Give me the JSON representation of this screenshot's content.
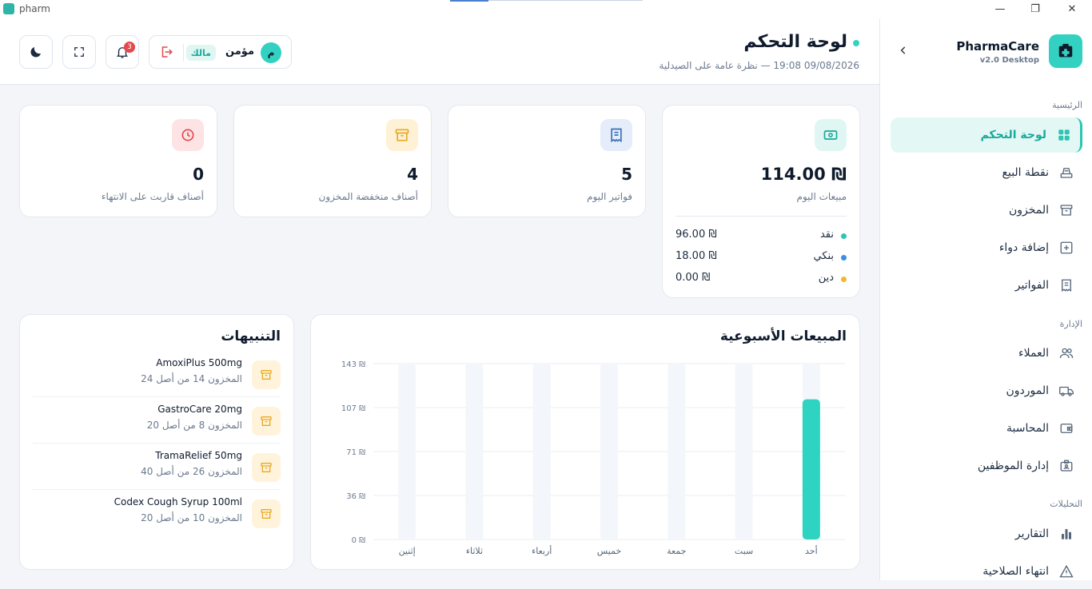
{
  "window": {
    "title": "pharm",
    "controls": [
      "—",
      "❐",
      "✕"
    ]
  },
  "brand": {
    "name": "PharmaCare",
    "version": "v2.0 Desktop"
  },
  "sidebar": {
    "sections": [
      {
        "label": "الرئيسية"
      },
      {
        "label": "الإدارة"
      },
      {
        "label": "التحليلات"
      }
    ],
    "items": [
      {
        "label": "لوحة التحكم",
        "icon": "grid-icon",
        "active": true
      },
      {
        "label": "نقطة البيع",
        "icon": "register-icon"
      },
      {
        "label": "المخزون",
        "icon": "archive-icon"
      },
      {
        "label": "إضافة دواء",
        "icon": "plus-square-icon"
      },
      {
        "label": "الفواتير",
        "icon": "receipt-icon"
      },
      {
        "label": "العملاء",
        "icon": "users-icon"
      },
      {
        "label": "الموردون",
        "icon": "truck-icon"
      },
      {
        "label": "المحاسبة",
        "icon": "wallet-icon"
      },
      {
        "label": "إدارة الموظفين",
        "icon": "id-card-icon"
      },
      {
        "label": "التقارير",
        "icon": "bar-chart-icon"
      },
      {
        "label": "انتهاء الصلاحية",
        "icon": "warning-icon"
      }
    ]
  },
  "header": {
    "title": "لوحة التحكم",
    "subtitle": "09/08/2026 19:08 — نظرة عامة على الصيدلية",
    "user": {
      "initial": "م",
      "name": "مؤمن",
      "role": "مالك"
    },
    "notifications": "3"
  },
  "kpis": {
    "sales": {
      "value": "114.00 ₪",
      "label": "مبيعات اليوم",
      "breakdown": [
        {
          "label": "نقد",
          "value": "96.00 ₪",
          "color": "#2fc4b4"
        },
        {
          "label": "بنكي",
          "value": "18.00 ₪",
          "color": "#3b8fe0"
        },
        {
          "label": "دين",
          "value": "0.00 ₪",
          "color": "#f2b82c"
        }
      ]
    },
    "invoices": {
      "value": "5",
      "label": "فواتير اليوم"
    },
    "low_stock": {
      "value": "4",
      "label": "أصناف منخفضة المخزون"
    },
    "expiring": {
      "value": "0",
      "label": "أصناف قاربت على الانتهاء"
    }
  },
  "chart": {
    "title": "المبيعات الأسبوعية"
  },
  "chart_data": {
    "type": "bar",
    "title": "المبيعات الأسبوعية",
    "categories": [
      "أحد",
      "سبت",
      "جمعة",
      "خميس",
      "أربعاء",
      "ثلاثاء",
      "إثنين"
    ],
    "values": [
      114,
      0,
      0,
      0,
      0,
      0,
      0
    ],
    "y_ticks": [
      "143 ₪",
      "107 ₪",
      "71 ₪",
      "36 ₪",
      "0 ₪"
    ],
    "ylim": [
      0,
      143
    ],
    "color": "#2fd3c1",
    "grid": true
  },
  "alerts": {
    "title": "التنبيهات",
    "items": [
      {
        "name": "AmoxiPlus 500mg",
        "detail": "المخزون 14 من أصل 24"
      },
      {
        "name": "GastroCare 20mg",
        "detail": "المخزون 8 من أصل 20"
      },
      {
        "name": "TramaRelief 50mg",
        "detail": "المخزون 26 من أصل 40"
      },
      {
        "name": "Codex Cough Syrup 100ml",
        "detail": "المخزون 10 من أصل 20"
      }
    ]
  }
}
